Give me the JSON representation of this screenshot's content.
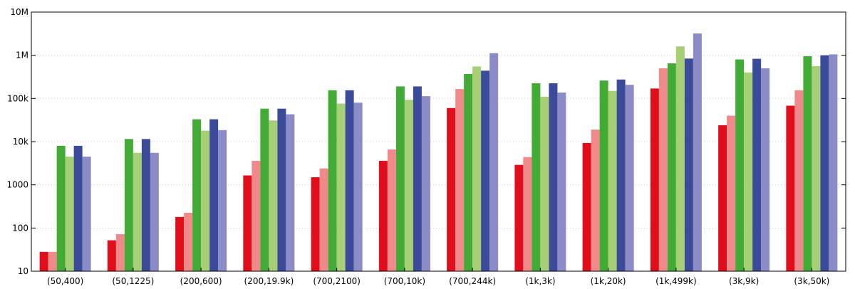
{
  "chart_data": {
    "type": "bar",
    "title": "",
    "xlabel": "",
    "ylabel": "",
    "y_scale": "log",
    "ylim": [
      10,
      10000000
    ],
    "grid": "horizontal dotted",
    "legend": "none",
    "y_ticks": [
      {
        "value": 10,
        "label": "10"
      },
      {
        "value": 100,
        "label": "100"
      },
      {
        "value": 1000,
        "label": "1000"
      },
      {
        "value": 10000,
        "label": "10k"
      },
      {
        "value": 100000,
        "label": "100k"
      },
      {
        "value": 1000000,
        "label": "1M"
      },
      {
        "value": 10000000,
        "label": "10M"
      }
    ],
    "categories": [
      "(50,400)",
      "(50,1225)",
      "(200,600)",
      "(200,19.9k)",
      "(700,2100)",
      "(700,10k)",
      "(700,244k)",
      "(1k,3k)",
      "(1k,20k)",
      "(1k,499k)",
      "(3k,9k)",
      "(3k,50k)"
    ],
    "series": [
      {
        "color": "#e00d1a",
        "values": [
          28,
          52,
          180,
          1650,
          1500,
          3600,
          60000,
          2900,
          9300,
          170000,
          24000,
          68000
        ]
      },
      {
        "color": "#f08a8a",
        "values": [
          28,
          72,
          225,
          3600,
          2400,
          6600,
          165000,
          4400,
          19000,
          500000,
          40000,
          155000
        ]
      },
      {
        "color": "#41ab35",
        "values": [
          8000,
          11500,
          33000,
          58000,
          155000,
          190000,
          370000,
          225000,
          260000,
          650000,
          800000,
          950000
        ]
      },
      {
        "color": "#a6cf76",
        "values": [
          4500,
          5500,
          18000,
          31000,
          76000,
          93000,
          550000,
          110000,
          150000,
          1600000,
          400000,
          560000
        ]
      },
      {
        "color": "#3c4a9a",
        "values": [
          8000,
          11500,
          33000,
          58000,
          155000,
          190000,
          440000,
          225000,
          275000,
          840000,
          830000,
          1000000
        ]
      },
      {
        "color": "#8b8bc7",
        "values": [
          4500,
          5500,
          18500,
          43000,
          80000,
          113000,
          1120000,
          137000,
          207000,
          3200000,
          500000,
          1050000
        ]
      }
    ]
  }
}
